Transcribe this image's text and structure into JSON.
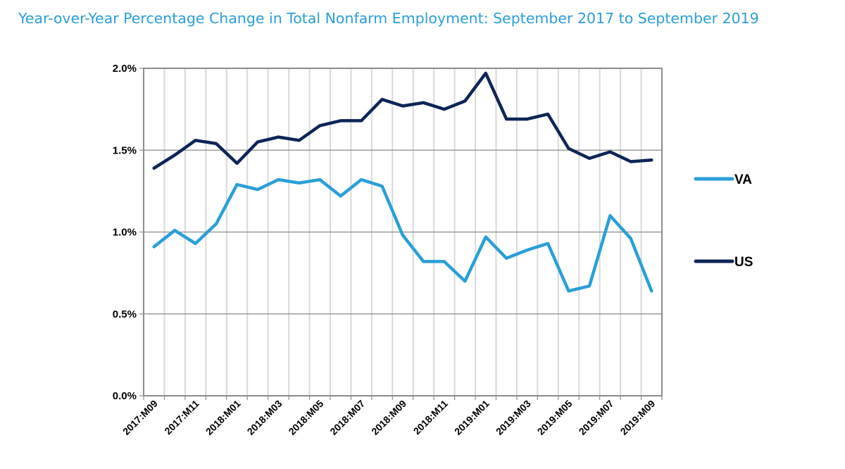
{
  "chart_data": {
    "type": "line",
    "title": "Year-over-Year Percentage Change in Total Nonfarm Employment: September 2017 to September 2019",
    "x": [
      "2017:M09",
      "2017:M10",
      "2017:M11",
      "2017:M12",
      "2018:M01",
      "2018:M02",
      "2018:M03",
      "2018:M04",
      "2018:M05",
      "2018:M06",
      "2018:M07",
      "2018:M08",
      "2018:M09",
      "2018:M10",
      "2018:M11",
      "2018:M12",
      "2019:M01",
      "2019:M02",
      "2019:M03",
      "2019:M04",
      "2019:M05",
      "2019:M06",
      "2019:M07",
      "2019:M08",
      "2019:M09"
    ],
    "xticklabels": [
      "2017:M09",
      "2017:M11",
      "2018:M01",
      "2018:M03",
      "2018:M05",
      "2018:M07",
      "2018:M09",
      "2018:M11",
      "2019:M01",
      "2019:M03",
      "2019:M05",
      "2019:M07",
      "2019:M09"
    ],
    "yticklabels": [
      "0.0%",
      "0.5%",
      "1.0%",
      "1.5%",
      "2.0%"
    ],
    "ylim": [
      0,
      2.0
    ],
    "yticks": [
      0,
      0.5,
      1.0,
      1.5,
      2.0
    ],
    "grid": "horizontal and vertical",
    "legend_position": "right",
    "series": [
      {
        "name": "VA",
        "color": "#2a9fd8",
        "values": [
          0.91,
          1.01,
          0.93,
          1.05,
          1.29,
          1.26,
          1.32,
          1.3,
          1.32,
          1.22,
          1.32,
          1.28,
          0.98,
          0.82,
          0.82,
          0.7,
          0.97,
          0.84,
          0.89,
          0.93,
          0.64,
          0.67,
          1.1,
          0.96,
          0.64
        ]
      },
      {
        "name": "US",
        "color": "#0e2557",
        "values": [
          1.39,
          1.47,
          1.56,
          1.54,
          1.42,
          1.55,
          1.58,
          1.56,
          1.65,
          1.68,
          1.68,
          1.81,
          1.77,
          1.79,
          1.75,
          1.8,
          1.97,
          1.69,
          1.69,
          1.72,
          1.51,
          1.45,
          1.49,
          1.43,
          1.44
        ]
      }
    ]
  }
}
